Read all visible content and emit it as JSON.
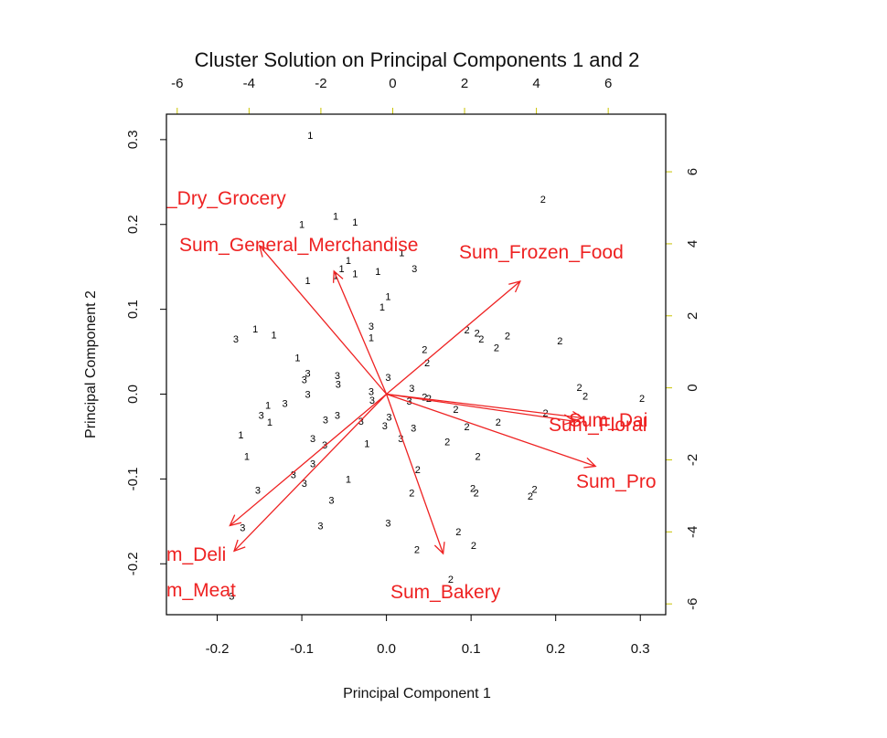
{
  "chart_data": {
    "type": "scatter",
    "subtype": "biplot",
    "title": "Cluster Solution on Principal Components 1 and 2",
    "xlabel": "Principal Component 1",
    "ylabel": "Principal Component 2",
    "xlim": [
      -0.26,
      0.33
    ],
    "ylim": [
      -0.26,
      0.33
    ],
    "x_ticks": [
      -0.2,
      -0.1,
      0.0,
      0.1,
      0.2,
      0.3
    ],
    "x_tick_labels": [
      "-0.2",
      "-0.1",
      "0.0",
      "0.1",
      "0.2",
      "0.3"
    ],
    "y_ticks": [
      -0.2,
      -0.1,
      0.0,
      0.1,
      0.2,
      0.3
    ],
    "y_tick_labels": [
      "-0.2",
      "-0.1",
      "0.0",
      "0.1",
      "0.2",
      "0.3"
    ],
    "top_axis": {
      "lim": [
        -6.3,
        7.6
      ],
      "ticks": [
        -6,
        -4,
        -2,
        0,
        2,
        4,
        6
      ],
      "tick_labels": [
        "-6",
        "-4",
        "-2",
        "0",
        "2",
        "4",
        "6"
      ],
      "color": "#c9c200"
    },
    "right_axis": {
      "lim": [
        -6.3,
        7.6
      ],
      "ticks": [
        -6,
        -4,
        -2,
        0,
        2,
        4,
        6
      ],
      "tick_labels": [
        "-6",
        "-4",
        "-2",
        "0",
        "2",
        "4",
        "6"
      ],
      "color": "#c9c200"
    },
    "grid": false,
    "point_color": "#000000",
    "loading_color": "#ee2222",
    "points": [
      {
        "x": -0.09,
        "y": 0.305,
        "label": "1"
      },
      {
        "x": 0.185,
        "y": 0.23,
        "label": "2"
      },
      {
        "x": -0.06,
        "y": 0.21,
        "label": "1"
      },
      {
        "x": -0.1,
        "y": 0.2,
        "label": "1"
      },
      {
        "x": -0.037,
        "y": 0.203,
        "label": "1"
      },
      {
        "x": 0.018,
        "y": 0.167,
        "label": "1"
      },
      {
        "x": -0.045,
        "y": 0.158,
        "label": "1"
      },
      {
        "x": -0.053,
        "y": 0.148,
        "label": "1"
      },
      {
        "x": -0.037,
        "y": 0.142,
        "label": "1"
      },
      {
        "x": -0.01,
        "y": 0.145,
        "label": "1"
      },
      {
        "x": 0.033,
        "y": 0.148,
        "label": "3"
      },
      {
        "x": -0.093,
        "y": 0.134,
        "label": "1"
      },
      {
        "x": -0.06,
        "y": 0.14,
        "label": "1"
      },
      {
        "x": 0.002,
        "y": 0.115,
        "label": "1"
      },
      {
        "x": -0.005,
        "y": 0.103,
        "label": "1"
      },
      {
        "x": -0.018,
        "y": 0.08,
        "label": "3"
      },
      {
        "x": -0.018,
        "y": 0.067,
        "label": "1"
      },
      {
        "x": -0.155,
        "y": 0.077,
        "label": "1"
      },
      {
        "x": -0.133,
        "y": 0.07,
        "label": "1"
      },
      {
        "x": -0.178,
        "y": 0.065,
        "label": "3"
      },
      {
        "x": 0.095,
        "y": 0.076,
        "label": "2"
      },
      {
        "x": 0.107,
        "y": 0.072,
        "label": "2"
      },
      {
        "x": 0.112,
        "y": 0.065,
        "label": "2"
      },
      {
        "x": 0.143,
        "y": 0.069,
        "label": "2"
      },
      {
        "x": 0.13,
        "y": 0.055,
        "label": "2"
      },
      {
        "x": 0.205,
        "y": 0.063,
        "label": "2"
      },
      {
        "x": 0.045,
        "y": 0.053,
        "label": "2"
      },
      {
        "x": 0.048,
        "y": 0.037,
        "label": "2"
      },
      {
        "x": -0.105,
        "y": 0.043,
        "label": "1"
      },
      {
        "x": -0.093,
        "y": 0.025,
        "label": "3"
      },
      {
        "x": -0.097,
        "y": 0.017,
        "label": "3"
      },
      {
        "x": -0.058,
        "y": 0.022,
        "label": "3"
      },
      {
        "x": -0.057,
        "y": 0.012,
        "label": "3"
      },
      {
        "x": 0.002,
        "y": 0.02,
        "label": "3"
      },
      {
        "x": -0.093,
        "y": 0.0,
        "label": "3"
      },
      {
        "x": -0.018,
        "y": 0.003,
        "label": "3"
      },
      {
        "x": -0.017,
        "y": -0.007,
        "label": "3"
      },
      {
        "x": 0.03,
        "y": 0.007,
        "label": "3"
      },
      {
        "x": 0.027,
        "y": -0.008,
        "label": "3"
      },
      {
        "x": 0.045,
        "y": -0.003,
        "label": "2"
      },
      {
        "x": 0.05,
        "y": -0.005,
        "label": "2"
      },
      {
        "x": 0.228,
        "y": 0.008,
        "label": "2"
      },
      {
        "x": 0.235,
        "y": -0.002,
        "label": "2"
      },
      {
        "x": 0.302,
        "y": -0.005,
        "label": "2"
      },
      {
        "x": -0.14,
        "y": -0.013,
        "label": "1"
      },
      {
        "x": -0.12,
        "y": -0.011,
        "label": "3"
      },
      {
        "x": -0.148,
        "y": -0.025,
        "label": "3"
      },
      {
        "x": -0.138,
        "y": -0.033,
        "label": "1"
      },
      {
        "x": -0.058,
        "y": -0.025,
        "label": "3"
      },
      {
        "x": -0.072,
        "y": -0.03,
        "label": "3"
      },
      {
        "x": 0.082,
        "y": -0.018,
        "label": "2"
      },
      {
        "x": -0.03,
        "y": -0.032,
        "label": "3"
      },
      {
        "x": 0.003,
        "y": -0.027,
        "label": "3"
      },
      {
        "x": -0.002,
        "y": -0.037,
        "label": "3"
      },
      {
        "x": 0.032,
        "y": -0.04,
        "label": "3"
      },
      {
        "x": 0.095,
        "y": -0.038,
        "label": "2"
      },
      {
        "x": 0.132,
        "y": -0.033,
        "label": "2"
      },
      {
        "x": 0.188,
        "y": -0.022,
        "label": "2"
      },
      {
        "x": -0.172,
        "y": -0.048,
        "label": "1"
      },
      {
        "x": -0.087,
        "y": -0.052,
        "label": "3"
      },
      {
        "x": -0.073,
        "y": -0.06,
        "label": "3"
      },
      {
        "x": 0.017,
        "y": -0.052,
        "label": "3"
      },
      {
        "x": -0.023,
        "y": -0.058,
        "label": "1"
      },
      {
        "x": 0.072,
        "y": -0.056,
        "label": "2"
      },
      {
        "x": -0.165,
        "y": -0.073,
        "label": "1"
      },
      {
        "x": 0.108,
        "y": -0.073,
        "label": "2"
      },
      {
        "x": -0.087,
        "y": -0.082,
        "label": "3"
      },
      {
        "x": 0.037,
        "y": -0.089,
        "label": "2"
      },
      {
        "x": -0.11,
        "y": -0.095,
        "label": "3"
      },
      {
        "x": -0.097,
        "y": -0.105,
        "label": "3"
      },
      {
        "x": -0.045,
        "y": -0.1,
        "label": "1"
      },
      {
        "x": -0.152,
        "y": -0.113,
        "label": "3"
      },
      {
        "x": 0.03,
        "y": -0.116,
        "label": "2"
      },
      {
        "x": 0.102,
        "y": -0.111,
        "label": "2"
      },
      {
        "x": 0.106,
        "y": -0.116,
        "label": "2"
      },
      {
        "x": 0.175,
        "y": -0.112,
        "label": "2"
      },
      {
        "x": 0.17,
        "y": -0.12,
        "label": "2"
      },
      {
        "x": -0.065,
        "y": -0.125,
        "label": "3"
      },
      {
        "x": -0.17,
        "y": -0.157,
        "label": "3"
      },
      {
        "x": -0.078,
        "y": -0.155,
        "label": "3"
      },
      {
        "x": 0.002,
        "y": -0.152,
        "label": "3"
      },
      {
        "x": 0.085,
        "y": -0.162,
        "label": "2"
      },
      {
        "x": 0.103,
        "y": -0.178,
        "label": "2"
      },
      {
        "x": 0.036,
        "y": -0.183,
        "label": "2"
      },
      {
        "x": 0.076,
        "y": -0.218,
        "label": "2"
      },
      {
        "x": -0.183,
        "y": -0.238,
        "label": "3"
      }
    ],
    "loadings": [
      {
        "name": "Sum_Dry_Grocery",
        "label": "_Dry_Grocery",
        "x": -0.15,
        "y": 0.175
      },
      {
        "name": "Sum_General_Merchandise",
        "label": "Sum_General_Merchandise",
        "x": -0.062,
        "y": 0.145
      },
      {
        "name": "Sum_Frozen_Food",
        "label": "Sum_Frozen_Food",
        "x": 0.158,
        "y": 0.133
      },
      {
        "name": "Sum_Dairy",
        "label": "Sum_Dai",
        "x": 0.232,
        "y": -0.028
      },
      {
        "name": "Sum_Floral",
        "label": "Sum_Floral",
        "x": 0.222,
        "y": -0.032
      },
      {
        "name": "Sum_Produce",
        "label": "Sum_Pro",
        "x": 0.247,
        "y": -0.085
      },
      {
        "name": "Sum_Bakery",
        "label": "Sum_Bakery",
        "x": 0.067,
        "y": -0.188
      },
      {
        "name": "Sum_Deli",
        "label": "m_Deli",
        "x": -0.185,
        "y": -0.155
      },
      {
        "name": "Sum_Meat",
        "label": "m_Meat",
        "x": -0.18,
        "y": -0.185
      }
    ]
  }
}
